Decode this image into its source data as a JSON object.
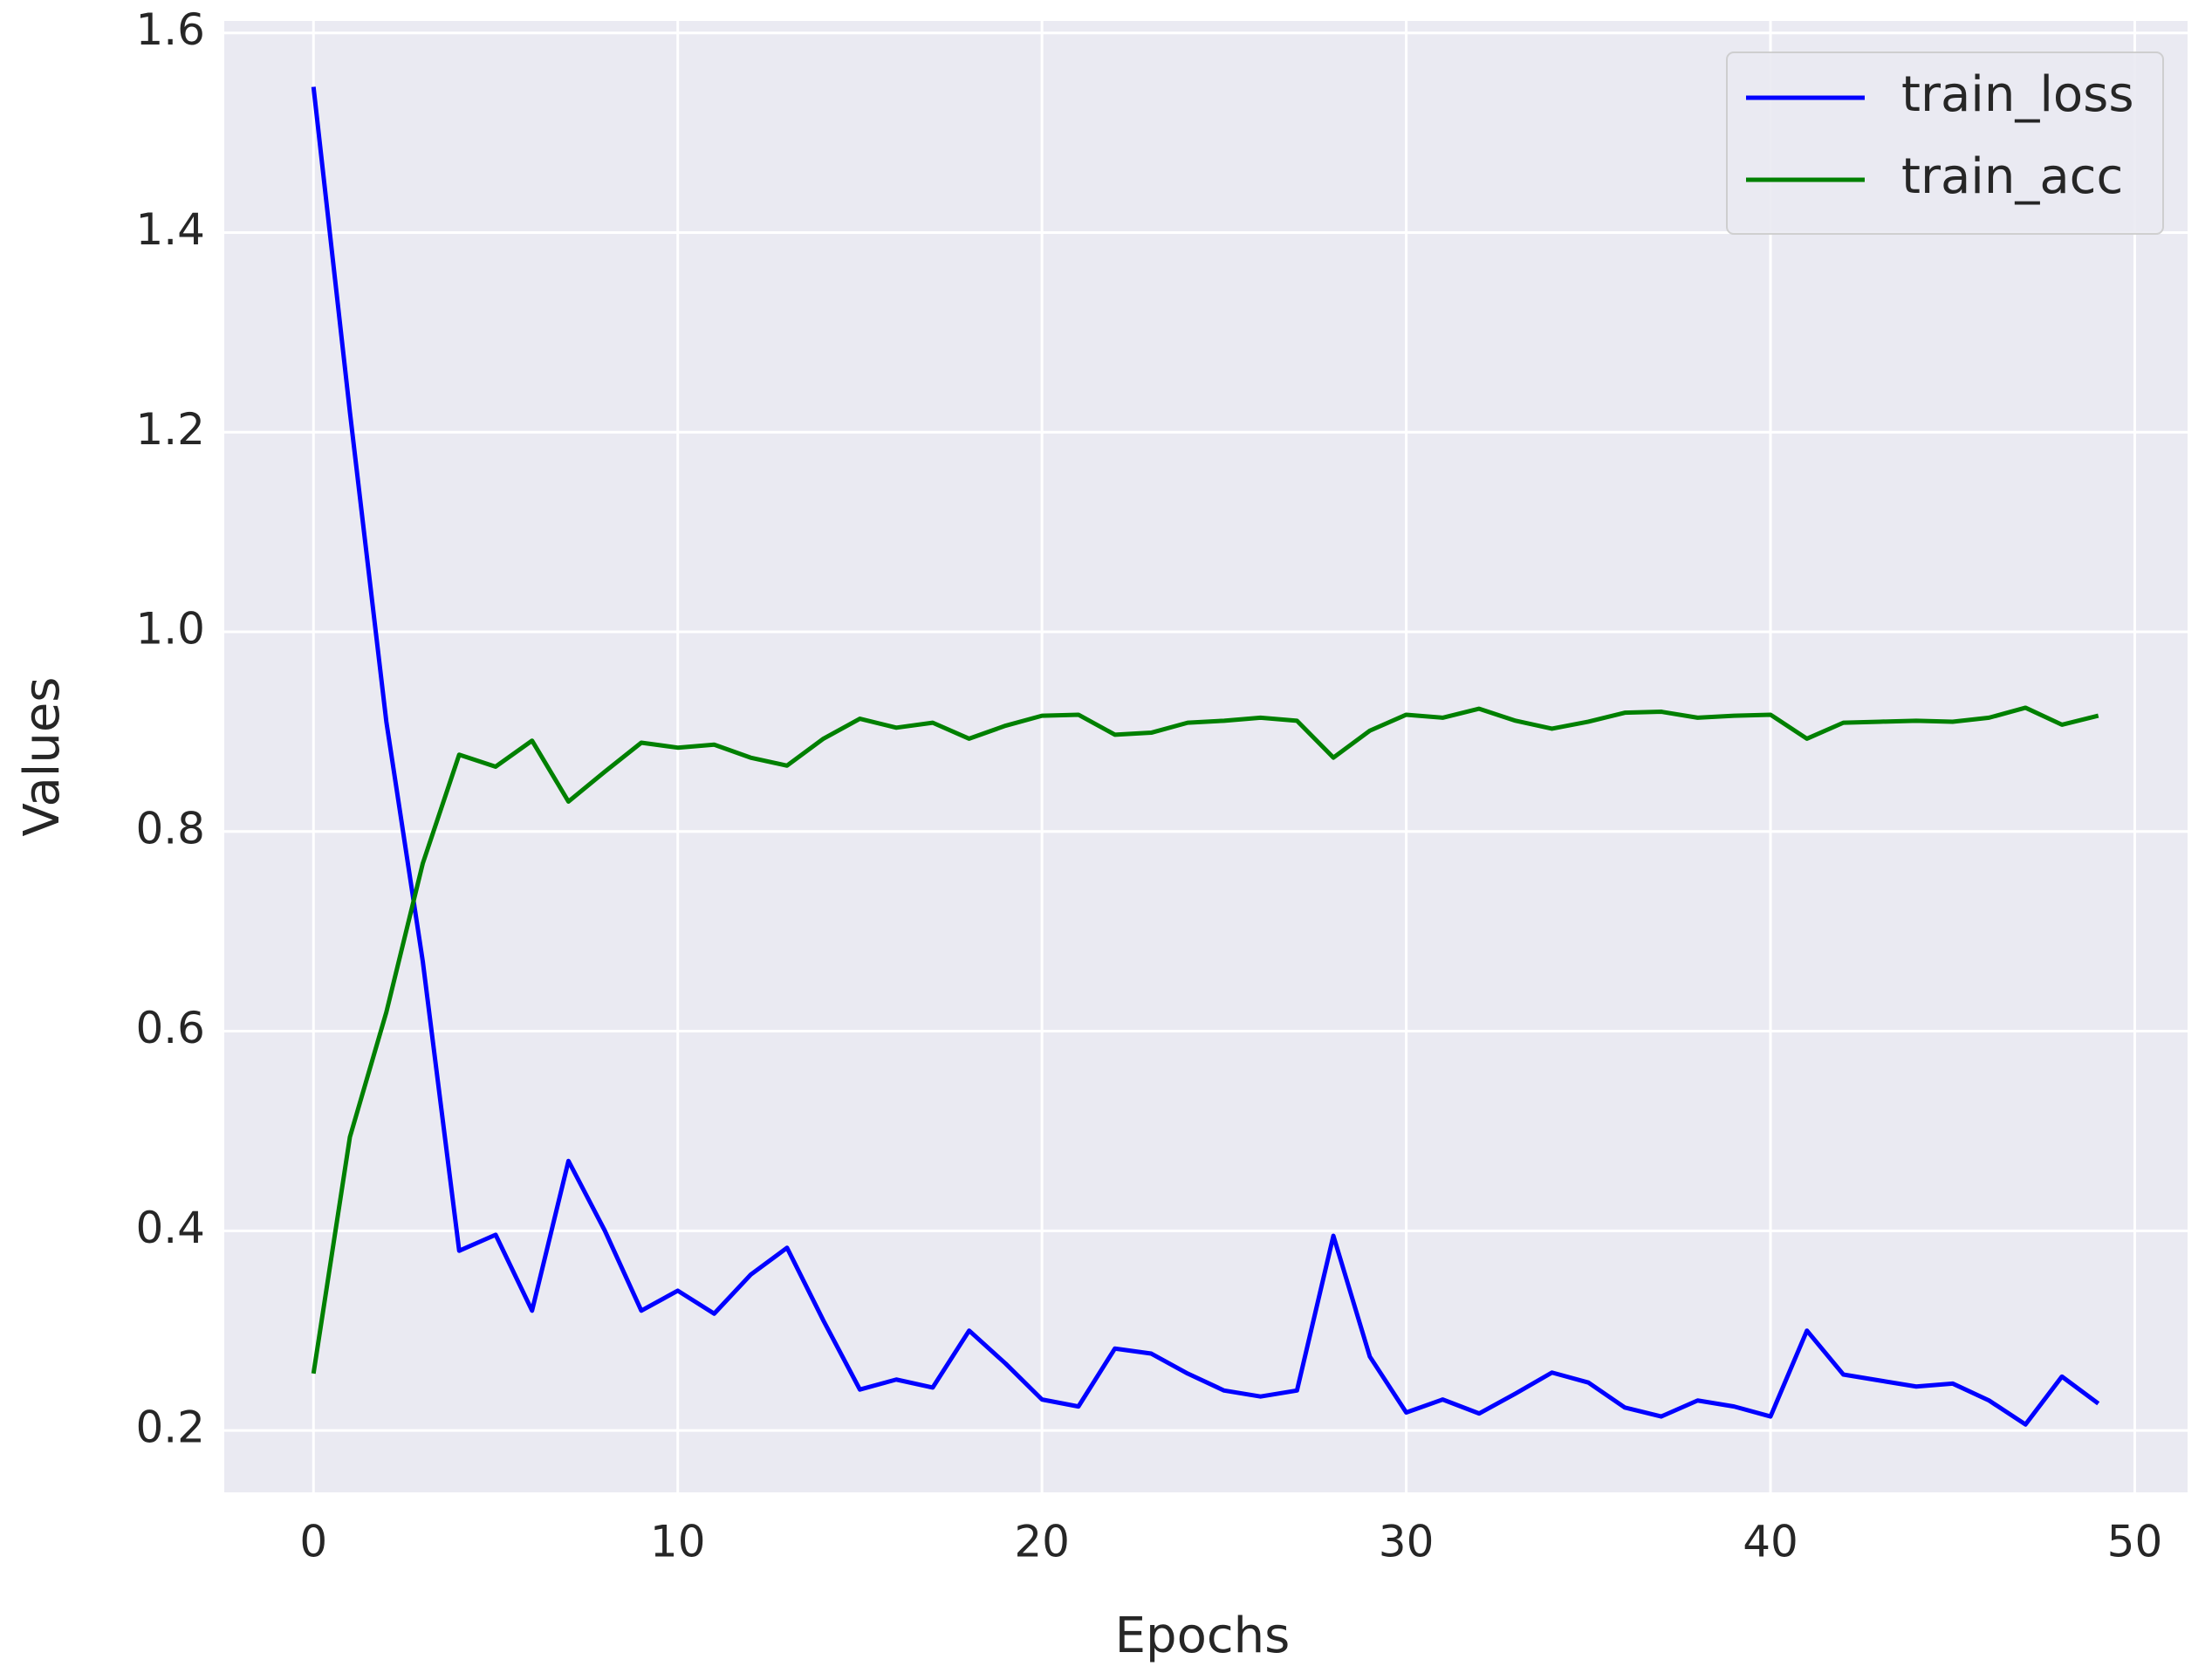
{
  "chart_data": {
    "type": "line",
    "x_label": "Epochs",
    "y_label": "Values",
    "x": [
      0,
      1,
      2,
      3,
      4,
      5,
      6,
      7,
      8,
      9,
      10,
      11,
      12,
      13,
      14,
      15,
      16,
      17,
      18,
      19,
      20,
      21,
      22,
      23,
      24,
      25,
      26,
      27,
      28,
      29,
      30,
      31,
      32,
      33,
      34,
      35,
      36,
      37,
      38,
      39,
      40,
      41,
      42,
      43,
      44,
      45,
      46,
      47,
      48,
      49
    ],
    "series": [
      {
        "name": "train_loss",
        "color": "#0000ff",
        "values": [
          1.546,
          1.22,
          0.91,
          0.67,
          0.38,
          0.396,
          0.32,
          0.47,
          0.4,
          0.32,
          0.34,
          0.317,
          0.356,
          0.383,
          0.31,
          0.241,
          0.251,
          0.243,
          0.3,
          0.267,
          0.231,
          0.224,
          0.282,
          0.277,
          0.257,
          0.24,
          0.234,
          0.24,
          0.395,
          0.274,
          0.218,
          0.231,
          0.217,
          0.237,
          0.258,
          0.248,
          0.223,
          0.214,
          0.23,
          0.224,
          0.214,
          0.3,
          0.256,
          0.25,
          0.244,
          0.247,
          0.23,
          0.206,
          0.254,
          0.227
        ]
      },
      {
        "name": "train_acc",
        "color": "#008000",
        "values": [
          0.257,
          0.494,
          0.619,
          0.768,
          0.877,
          0.865,
          0.891,
          0.83,
          0.86,
          0.889,
          0.884,
          0.887,
          0.874,
          0.866,
          0.893,
          0.913,
          0.904,
          0.909,
          0.893,
          0.906,
          0.916,
          0.917,
          0.897,
          0.899,
          0.909,
          0.911,
          0.914,
          0.911,
          0.874,
          0.901,
          0.917,
          0.914,
          0.923,
          0.911,
          0.903,
          0.91,
          0.919,
          0.92,
          0.914,
          0.916,
          0.917,
          0.893,
          0.909,
          0.91,
          0.911,
          0.91,
          0.914,
          0.924,
          0.907,
          0.916
        ]
      }
    ],
    "xlim": [
      -2.45,
      51.45
    ],
    "ylim": [
      0.138,
      1.612
    ],
    "xticks": [
      0,
      10,
      20,
      30,
      40,
      50
    ],
    "yticks": [
      {
        "value": 0.2,
        "label": "0.2"
      },
      {
        "value": 0.4,
        "label": "0.4"
      },
      {
        "value": 0.6,
        "label": "0.6"
      },
      {
        "value": 0.8,
        "label": "0.8"
      },
      {
        "value": 1.0,
        "label": "1.0"
      },
      {
        "value": 1.2,
        "label": "1.2"
      },
      {
        "value": 1.4,
        "label": "1.4"
      },
      {
        "value": 1.6,
        "label": "1.6"
      }
    ],
    "grid": true,
    "legend": "upper right"
  }
}
